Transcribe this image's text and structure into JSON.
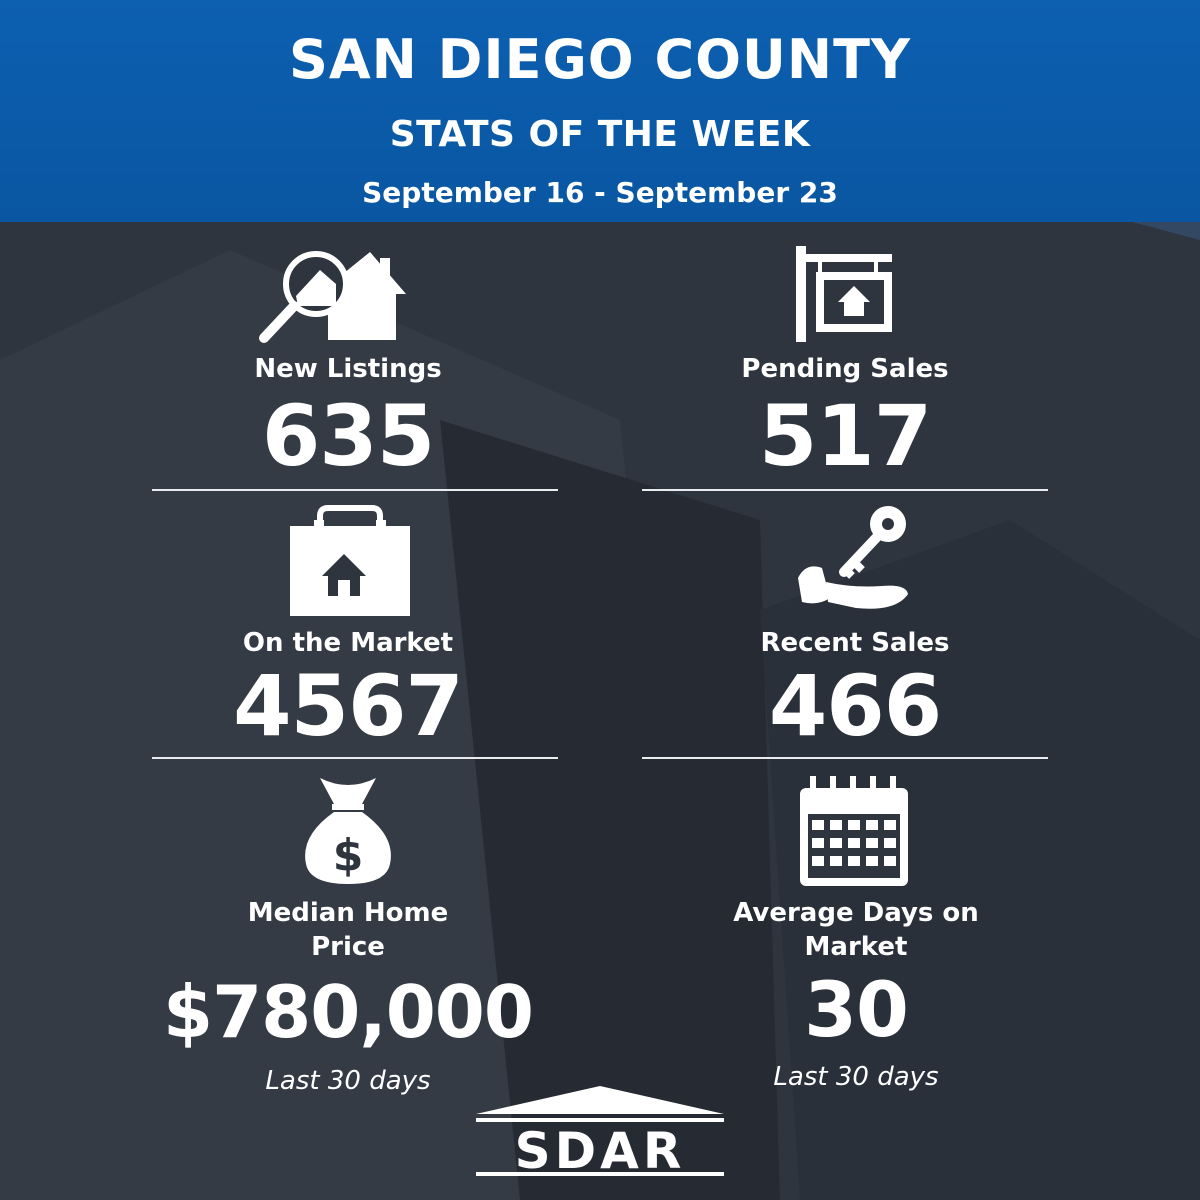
{
  "header": {
    "title": "SAN DIEGO COUNTY",
    "subtitle": "STATS OF THE WEEK",
    "date_range": "September 16 - September 23"
  },
  "stats": [
    {
      "label": "New Listings",
      "value": "635",
      "icon": "house-search-icon"
    },
    {
      "label": "Pending Sales",
      "value": "517",
      "icon": "hanging-sign-icon"
    },
    {
      "label": "On the Market",
      "value": "4567",
      "icon": "shopping-bag-house-icon"
    },
    {
      "label": "Recent Sales",
      "value": "466",
      "icon": "hand-key-icon"
    },
    {
      "label_line1": "Median Home",
      "label_line2": "Price",
      "value": "$780,000",
      "note": "Last 30 days",
      "icon": "money-bag-icon"
    },
    {
      "label_line1": "Average Days on",
      "label_line2": "Market",
      "value": "30",
      "note": "Last 30 days",
      "icon": "calendar-icon"
    }
  ],
  "logo": {
    "text": "SDAR"
  },
  "colors": {
    "header_blue": "#0b5cab",
    "background": "#2e343d",
    "text": "#ffffff"
  }
}
